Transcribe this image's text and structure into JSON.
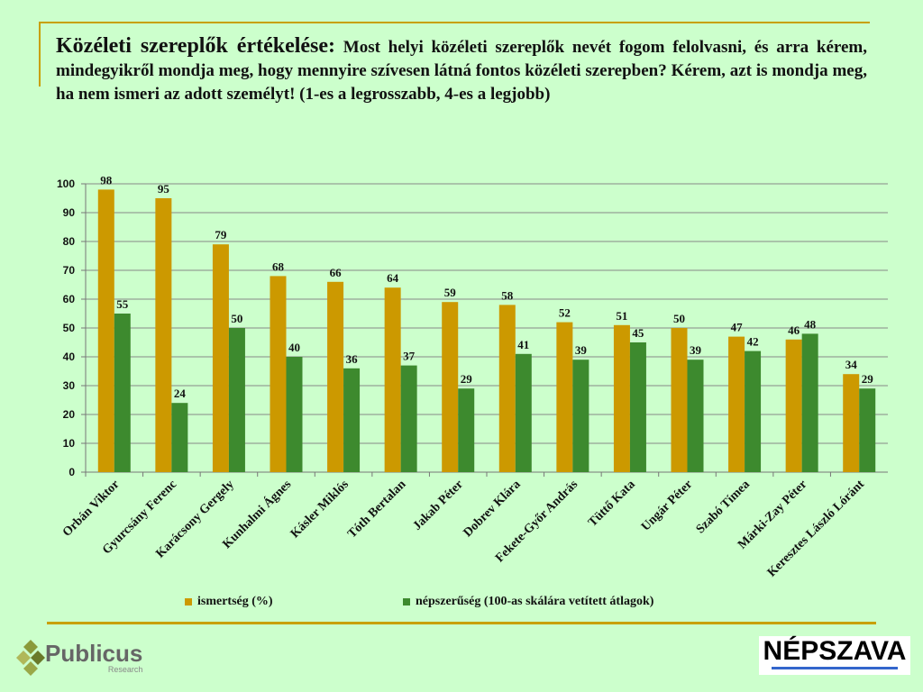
{
  "title": {
    "heading": "Közéleti szereplők értékelése:",
    "text": "Most helyi közéleti szereplők nevét fogom felolvasni, és arra kérem, mindegyikről mondja meg, hogy mennyire szívesen látná fontos közéleti szerepben? Kérem, azt is mondja meg, ha nem ismeri az adott személyt!  (1-es a legrosszabb, 4-es a legjobb)"
  },
  "chart_data": {
    "type": "bar",
    "categories": [
      "Orbán Viktor",
      "Gyurcsány Ferenc",
      "Karácsony Gergely",
      "Kunhalmi Ágnes",
      "Kásler Miklós",
      "Tóth Bertalan",
      "Jakab Péter",
      "Dobrev Klára",
      "Fekete-Győr András",
      "Tüttő Kata",
      "Ungár Péter",
      "Szabó Tímea",
      "Márki-Zay Péter",
      "Keresztes László Lóránt"
    ],
    "series": [
      {
        "name": "ismertség (%)",
        "color": "#cc9900",
        "values": [
          98,
          95,
          79,
          68,
          66,
          64,
          59,
          58,
          52,
          51,
          50,
          47,
          46,
          34
        ]
      },
      {
        "name": "népszerűség (100-as skálára vetített átlagok)",
        "color": "#3d8a2e",
        "values": [
          55,
          24,
          50,
          40,
          36,
          37,
          29,
          41,
          39,
          45,
          39,
          42,
          48,
          29
        ]
      }
    ],
    "yticks": [
      0,
      10,
      20,
      30,
      40,
      50,
      60,
      70,
      80,
      90,
      100
    ],
    "ylim": [
      0,
      100
    ],
    "grid": true,
    "legend": "bottom"
  },
  "logos": {
    "publicus": "Publicus",
    "publicus_sub": "Research",
    "nepszava": "NÉPSZAVA"
  }
}
